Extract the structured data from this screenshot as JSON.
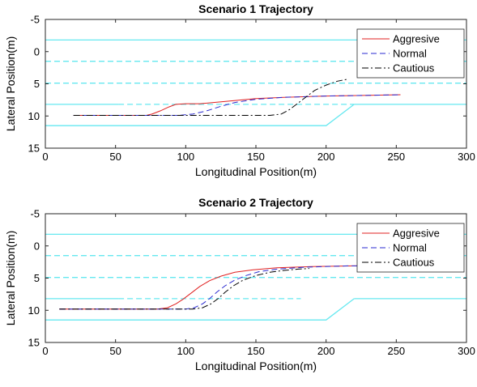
{
  "chart_data": [
    {
      "type": "line",
      "title": "Scenario 1 Trajectory",
      "xlabel": "Longitudinal Position(m)",
      "ylabel": "Lateral Position(m)",
      "xlim": [
        0,
        300
      ],
      "ylim": [
        -5,
        15
      ],
      "y_reversed": true,
      "xticks": [
        0,
        50,
        100,
        150,
        200,
        250,
        300
      ],
      "yticks": [
        -5,
        0,
        5,
        10,
        15
      ],
      "grid": false,
      "legend_position": "top-right",
      "road_color": "#66e8f0",
      "road_lines": [
        {
          "style": "solid",
          "points": [
            [
              0,
              -1.8
            ],
            [
              300,
              -1.8
            ]
          ]
        },
        {
          "style": "dashed",
          "points": [
            [
              0,
              1.5
            ],
            [
              300,
              1.5
            ]
          ]
        },
        {
          "style": "dashed",
          "points": [
            [
              0,
              4.9
            ],
            [
              300,
              4.9
            ]
          ]
        },
        {
          "style": "solid",
          "points": [
            [
              0,
              8.2
            ],
            [
              52,
              8.2
            ]
          ]
        },
        {
          "style": "dashed",
          "points": [
            [
              52,
              8.2
            ],
            [
              220,
              8.2
            ]
          ]
        },
        {
          "style": "solid",
          "points": [
            [
              220,
              8.2
            ],
            [
              300,
              8.2
            ]
          ]
        },
        {
          "style": "solid",
          "points": [
            [
              0,
              11.5
            ],
            [
              200,
              11.5
            ],
            [
              220,
              8.2
            ]
          ]
        }
      ],
      "series": [
        {
          "name": "Aggresive",
          "color": "#e02020",
          "dash": "solid",
          "points": [
            [
              20,
              9.9
            ],
            [
              72,
              9.9
            ],
            [
              76,
              9.7
            ],
            [
              82,
              9.2
            ],
            [
              88,
              8.6
            ],
            [
              93,
              8.2
            ],
            [
              100,
              8.1
            ],
            [
              110,
              8.1
            ],
            [
              130,
              7.7
            ],
            [
              150,
              7.3
            ],
            [
              170,
              7.1
            ],
            [
              200,
              6.9
            ],
            [
              230,
              6.8
            ],
            [
              253,
              6.7
            ]
          ]
        },
        {
          "name": "Normal",
          "color": "#2a2ad0",
          "dash": "dashed",
          "points": [
            [
              20,
              9.9
            ],
            [
              95,
              9.9
            ],
            [
              105,
              9.7
            ],
            [
              115,
              9.2
            ],
            [
              125,
              8.5
            ],
            [
              135,
              7.9
            ],
            [
              150,
              7.4
            ],
            [
              170,
              7.1
            ],
            [
              200,
              6.9
            ],
            [
              230,
              6.8
            ],
            [
              253,
              6.7
            ]
          ]
        },
        {
          "name": "Cautious",
          "color": "#000000",
          "dash": "dashdot",
          "points": [
            [
              20,
              9.9
            ],
            [
              160,
              9.9
            ],
            [
              168,
              9.7
            ],
            [
              174,
              9.0
            ],
            [
              180,
              8.0
            ],
            [
              186,
              7.0
            ],
            [
              192,
              6.0
            ],
            [
              200,
              5.2
            ],
            [
              208,
              4.6
            ],
            [
              215,
              4.3
            ]
          ]
        }
      ]
    },
    {
      "type": "line",
      "title": "Scenario 2 Trajectory",
      "xlabel": "Longitudinal Position(m)",
      "ylabel": "Lateral Position(m)",
      "xlim": [
        0,
        300
      ],
      "ylim": [
        -5,
        15
      ],
      "y_reversed": true,
      "xticks": [
        0,
        50,
        100,
        150,
        200,
        250,
        300
      ],
      "yticks": [
        -5,
        0,
        5,
        10,
        15
      ],
      "grid": false,
      "legend_position": "top-right",
      "road_color": "#66e8f0",
      "road_lines": [
        {
          "style": "solid",
          "points": [
            [
              0,
              -1.8
            ],
            [
              300,
              -1.8
            ]
          ]
        },
        {
          "style": "dashed",
          "points": [
            [
              0,
              1.5
            ],
            [
              300,
              1.5
            ]
          ]
        },
        {
          "style": "dashed",
          "points": [
            [
              0,
              4.9
            ],
            [
              300,
              4.9
            ]
          ]
        },
        {
          "style": "solid",
          "points": [
            [
              0,
              8.2
            ],
            [
              52,
              8.2
            ]
          ]
        },
        {
          "style": "dashed",
          "points": [
            [
              52,
              8.2
            ],
            [
              182,
              8.2
            ]
          ]
        },
        {
          "style": "solid",
          "points": [
            [
              220,
              8.2
            ],
            [
              300,
              8.2
            ]
          ]
        },
        {
          "style": "solid",
          "points": [
            [
              0,
              11.5
            ],
            [
              200,
              11.5
            ],
            [
              220,
              8.2
            ]
          ]
        }
      ],
      "series": [
        {
          "name": "Aggresive",
          "color": "#e02020",
          "dash": "solid",
          "points": [
            [
              10,
              9.8
            ],
            [
              80,
              9.8
            ],
            [
              87,
              9.6
            ],
            [
              93,
              9.0
            ],
            [
              98,
              8.3
            ],
            [
              104,
              7.3
            ],
            [
              110,
              6.3
            ],
            [
              117,
              5.4
            ],
            [
              125,
              4.7
            ],
            [
              135,
              4.1
            ],
            [
              148,
              3.7
            ],
            [
              165,
              3.4
            ],
            [
              190,
              3.2
            ],
            [
              220,
              3.1
            ],
            [
              253,
              3.1
            ]
          ]
        },
        {
          "name": "Normal",
          "color": "#2a2ad0",
          "dash": "dashed",
          "points": [
            [
              10,
              9.8
            ],
            [
              100,
              9.8
            ],
            [
              106,
              9.6
            ],
            [
              112,
              9.0
            ],
            [
              117,
              8.2
            ],
            [
              122,
              7.2
            ],
            [
              128,
              6.2
            ],
            [
              135,
              5.3
            ],
            [
              143,
              4.6
            ],
            [
              152,
              4.0
            ],
            [
              165,
              3.6
            ],
            [
              185,
              3.3
            ],
            [
              215,
              3.1
            ],
            [
              253,
              3.1
            ]
          ]
        },
        {
          "name": "Cautious",
          "color": "#000000",
          "dash": "dashdot",
          "points": [
            [
              10,
              9.8
            ],
            [
              105,
              9.8
            ],
            [
              112,
              9.6
            ],
            [
              118,
              9.0
            ],
            [
              123,
              8.2
            ],
            [
              128,
              7.2
            ],
            [
              134,
              6.2
            ],
            [
              141,
              5.3
            ],
            [
              150,
              4.6
            ],
            [
              160,
              4.1
            ],
            [
              170,
              3.8
            ],
            [
              180,
              3.6
            ],
            [
              188,
              3.5
            ]
          ]
        }
      ]
    }
  ]
}
